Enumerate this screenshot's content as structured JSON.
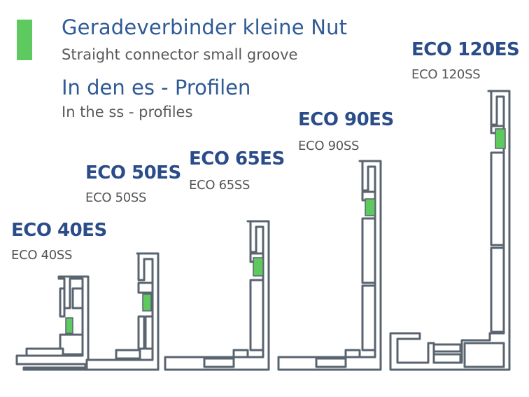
{
  "header": {
    "title_de": "Geradeverbinder kleine Nut",
    "title_en": "Straight connector small groove",
    "subtitle_de": "In den es - Profilen",
    "subtitle_en": "In the ss - profiles"
  },
  "profiles": [
    {
      "es": "ECO 40ES",
      "ss": "ECO 40SS"
    },
    {
      "es": "ECO 50ES",
      "ss": "ECO 50SS"
    },
    {
      "es": "ECO 65ES",
      "ss": "ECO 65SS"
    },
    {
      "es": "ECO 90ES",
      "ss": "ECO 90SS"
    },
    {
      "es": "ECO 120ES",
      "ss": "ECO 120SS"
    }
  ],
  "colors": {
    "accent_green": "#5dc95f",
    "title_blue": "#2f5a96",
    "label_blue": "#2a4d8a",
    "profile_outline": "#5a6470"
  }
}
